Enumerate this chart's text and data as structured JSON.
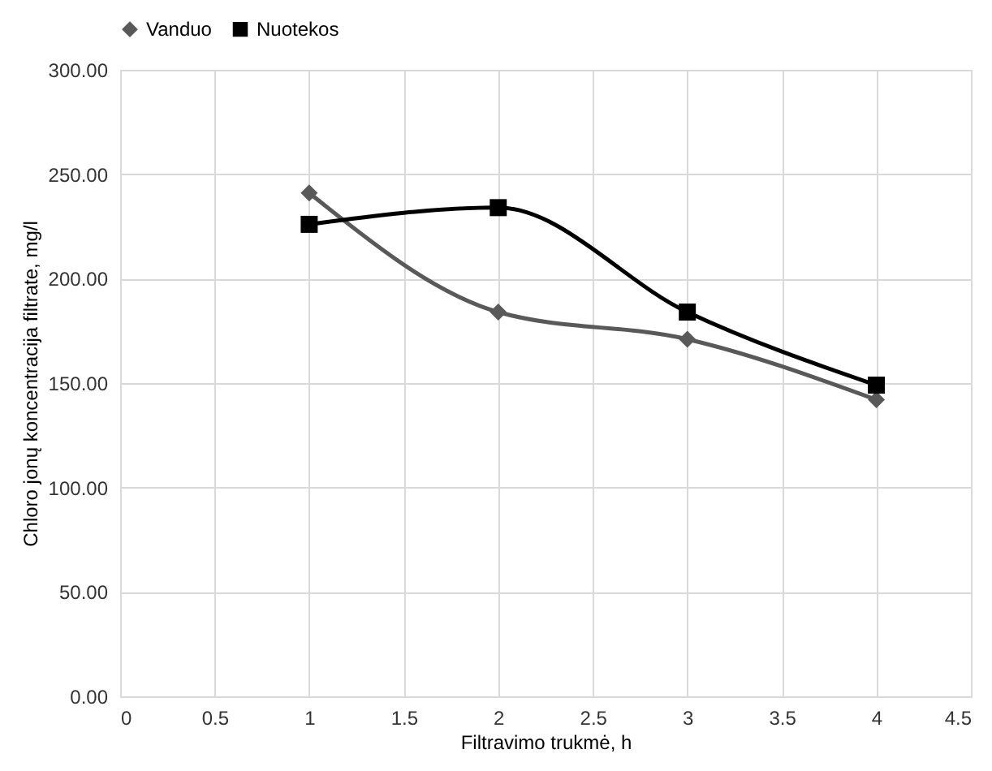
{
  "chart_data": {
    "type": "line",
    "xlabel": "Filtravimo trukmė, h",
    "ylabel": "Chloro jonų koncentracija filtrate, mg/l",
    "x": [
      1,
      2,
      3,
      4
    ],
    "series": [
      {
        "name": "Vanduo",
        "color": "#595959",
        "marker": "diamond",
        "values": [
          241,
          184,
          171,
          142
        ]
      },
      {
        "name": "Nuotekos",
        "color": "#000000",
        "marker": "square",
        "values": [
          226,
          234,
          184,
          149
        ]
      }
    ],
    "xlim": [
      0,
      4.5
    ],
    "xticks": [
      0,
      0.5,
      1,
      1.5,
      2,
      2.5,
      3,
      3.5,
      4,
      4.5
    ],
    "ylim": [
      0,
      300
    ],
    "yticks": [
      {
        "value": 0,
        "label": "0.00"
      },
      {
        "value": 50,
        "label": "50.00"
      },
      {
        "value": 100,
        "label": "100.00"
      },
      {
        "value": 150,
        "label": "150.00"
      },
      {
        "value": 200,
        "label": "200.00"
      },
      {
        "value": 250,
        "label": "250.00"
      },
      {
        "value": 300,
        "label": "300.00"
      }
    ],
    "grid": true,
    "legend": "top",
    "line_style": "solid"
  }
}
